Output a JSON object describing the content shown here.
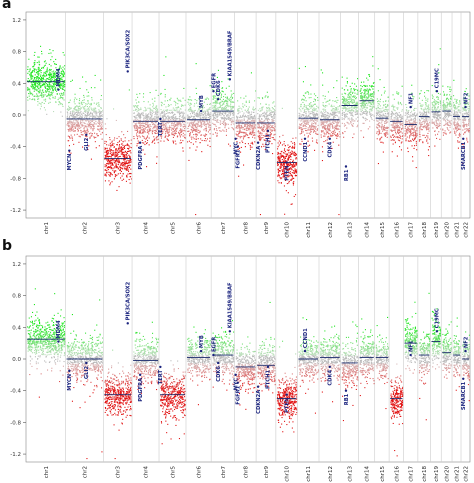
{
  "chart_data": [
    {
      "panel": "a",
      "type": "scatter",
      "description_axis": "copy-number log2 ratio by chromosome",
      "y_ticks": [
        "1.2",
        "0.8",
        "0.4",
        "0.0",
        "-0.4",
        "-0.8",
        "-1.2"
      ],
      "ylim": [
        -1.3,
        1.3
      ],
      "chromosomes": [
        "chr1",
        "chr2",
        "chr3",
        "chr4",
        "chr5",
        "chr6",
        "chr7",
        "chr8",
        "chr9",
        "chr10",
        "chr11",
        "chr12",
        "chr13",
        "chr14",
        "chr15",
        "chr16",
        "chr17",
        "chr18",
        "chr19",
        "chr20",
        "chr21",
        "chr22"
      ],
      "chrom_weights": [
        22,
        21,
        16,
        15,
        15,
        14,
        13,
        12,
        11,
        12,
        12,
        12,
        10,
        9,
        8,
        8,
        8,
        7,
        6,
        6,
        5,
        5
      ],
      "segment_means": [
        0.42,
        -0.05,
        -0.55,
        -0.08,
        -0.08,
        -0.06,
        0.05,
        -0.1,
        -0.1,
        -0.6,
        -0.04,
        -0.06,
        0.12,
        0.18,
        -0.04,
        -0.08,
        -0.12,
        -0.02,
        0.04,
        0.05,
        -0.02,
        -0.02
      ],
      "gene_labels": [
        {
          "gene": "MDM4",
          "chrom": "chr1",
          "pos": 0.82,
          "value": 0.32
        },
        {
          "gene": "MYCN",
          "chrom": "chr2",
          "pos": 0.1,
          "value": -0.45
        },
        {
          "gene": "GLI2",
          "chrom": "chr2",
          "pos": 0.55,
          "value": -0.25
        },
        {
          "gene": "PIK3CA/SOX2",
          "chrom": "chr3",
          "pos": 0.85,
          "value": 0.55
        },
        {
          "gene": "PDGFRA",
          "chrom": "chr4",
          "pos": 0.3,
          "value": -0.35
        },
        {
          "gene": "TERT",
          "chrom": "chr5",
          "pos": 0.05,
          "value": -0.05
        },
        {
          "gene": "MYB",
          "chrom": "chr6",
          "pos": 0.6,
          "value": 0.05
        },
        {
          "gene": "EGFR",
          "chrom": "chr7",
          "pos": 0.1,
          "value": 0.3
        },
        {
          "gene": "CDK6",
          "chrom": "chr7",
          "pos": 0.3,
          "value": 0.2
        },
        {
          "gene": "KIAA1549/BRAF",
          "chrom": "chr7",
          "pos": 0.8,
          "value": 0.45
        },
        {
          "gene": "MYC",
          "chrom": "chr8",
          "pos": 0.05,
          "value": -0.3
        },
        {
          "gene": "FGFR1",
          "chrom": "chr8",
          "pos": 0.15,
          "value": -0.4
        },
        {
          "gene": "CDKN2A",
          "chrom": "chr9",
          "pos": 0.1,
          "value": -0.35
        },
        {
          "gene": "PTCH1",
          "chrom": "chr9",
          "pos": 0.6,
          "value": -0.2
        },
        {
          "gene": "PTEN",
          "chrom": "chr10",
          "pos": 0.5,
          "value": -0.6
        },
        {
          "gene": "CCND1",
          "chrom": "chr11",
          "pos": 0.35,
          "value": -0.3
        },
        {
          "gene": "CDK4",
          "chrom": "chr12",
          "pos": 0.5,
          "value": -0.3
        },
        {
          "gene": "RB1",
          "chrom": "chr13",
          "pos": 0.3,
          "value": -0.65
        },
        {
          "gene": "NF1",
          "chrom": "chr17",
          "pos": 0.5,
          "value": 0.1
        },
        {
          "gene": "C19MC",
          "chrom": "chr19",
          "pos": 0.6,
          "value": 0.3
        },
        {
          "gene": "NF2",
          "chrom": "chr22",
          "pos": 0.5,
          "value": 0.1
        },
        {
          "gene": "SMARCB1",
          "chrom": "chr22",
          "pos": 0.25,
          "value": -0.3
        }
      ]
    },
    {
      "panel": "b",
      "type": "scatter",
      "description_axis": "copy-number log2 ratio by chromosome",
      "y_ticks": [
        "1.2",
        "0.8",
        "0.4",
        "0.0",
        "-0.4",
        "-0.8",
        "-1.2"
      ],
      "ylim": [
        -1.3,
        1.3
      ],
      "chromosomes": [
        "chr1",
        "chr2",
        "chr3",
        "chr4",
        "chr5",
        "chr6",
        "chr7",
        "chr8",
        "chr9",
        "chr10",
        "chr11",
        "chr12",
        "chr13",
        "chr14",
        "chr15",
        "chr16",
        "chr17",
        "chr18",
        "chr19",
        "chr20",
        "chr21",
        "chr22"
      ],
      "chrom_weights": [
        22,
        21,
        16,
        15,
        15,
        14,
        13,
        12,
        11,
        12,
        12,
        12,
        10,
        9,
        8,
        8,
        8,
        7,
        6,
        6,
        5,
        5
      ],
      "segment_means": [
        0.25,
        0.0,
        -0.45,
        -0.02,
        -0.45,
        0.02,
        0.05,
        -0.1,
        -0.08,
        -0.5,
        0.0,
        0.02,
        -0.05,
        0.02,
        0.02,
        -0.5,
        0.2,
        0.05,
        0.22,
        0.08,
        0.05,
        0.0
      ],
      "gene_labels": [
        {
          "gene": "MDM4",
          "chrom": "chr1",
          "pos": 0.82,
          "value": 0.22
        },
        {
          "gene": "MYCN",
          "chrom": "chr2",
          "pos": 0.1,
          "value": -0.15
        },
        {
          "gene": "GLI2",
          "chrom": "chr2",
          "pos": 0.55,
          "value": -0.05
        },
        {
          "gene": "PIK3CA/SOX2",
          "chrom": "chr3",
          "pos": 0.85,
          "value": 0.45
        },
        {
          "gene": "PDGFRA",
          "chrom": "chr4",
          "pos": 0.3,
          "value": -0.2
        },
        {
          "gene": "TERT",
          "chrom": "chr5",
          "pos": 0.05,
          "value": -0.1
        },
        {
          "gene": "MYB",
          "chrom": "chr6",
          "pos": 0.6,
          "value": 0.1
        },
        {
          "gene": "EGFR",
          "chrom": "chr7",
          "pos": 0.1,
          "value": 0.05
        },
        {
          "gene": "CDK6",
          "chrom": "chr7",
          "pos": 0.3,
          "value": -0.05
        },
        {
          "gene": "KIAA1549/BRAF",
          "chrom": "chr7",
          "pos": 0.8,
          "value": 0.35
        },
        {
          "gene": "MYC",
          "chrom": "chr8",
          "pos": 0.05,
          "value": -0.2
        },
        {
          "gene": "FGFR1",
          "chrom": "chr8",
          "pos": 0.15,
          "value": -0.3
        },
        {
          "gene": "CDKN2A",
          "chrom": "chr9",
          "pos": 0.1,
          "value": -0.35
        },
        {
          "gene": "PTCH1",
          "chrom": "chr9",
          "pos": 0.6,
          "value": -0.1
        },
        {
          "gene": "PTEN",
          "chrom": "chr10",
          "pos": 0.5,
          "value": -0.45
        },
        {
          "gene": "CCND1",
          "chrom": "chr11",
          "pos": 0.35,
          "value": 0.1
        },
        {
          "gene": "CDK4",
          "chrom": "chr12",
          "pos": 0.5,
          "value": -0.1
        },
        {
          "gene": "RB1",
          "chrom": "chr13",
          "pos": 0.3,
          "value": -0.4
        },
        {
          "gene": "NF1",
          "chrom": "chr17",
          "pos": 0.5,
          "value": 0.05
        },
        {
          "gene": "C19MC",
          "chrom": "chr19",
          "pos": 0.6,
          "value": 0.35
        },
        {
          "gene": "NF2",
          "chrom": "chr22",
          "pos": 0.5,
          "value": 0.1
        },
        {
          "gene": "SMARCB1",
          "chrom": "chr22",
          "pos": 0.25,
          "value": -0.25
        }
      ]
    }
  ],
  "panels": {
    "a_label": "a",
    "b_label": "b"
  },
  "colors": {
    "gain": "#22cc22",
    "loss": "#dd1111",
    "neutral": "#bbbbbb",
    "segment": "#1a2a6c",
    "label": "#1a237e",
    "grid": "#cccccc"
  }
}
